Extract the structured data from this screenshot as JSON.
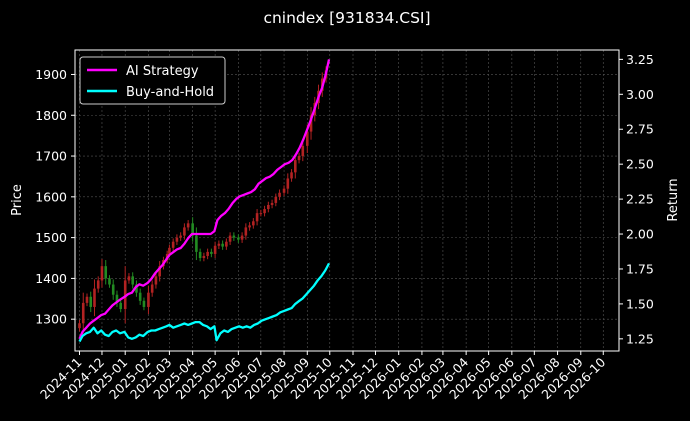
{
  "chart_data": {
    "type": "line",
    "title": "cnindex [931834.CSI]",
    "ylabel": "Price",
    "y2label": "Return",
    "ylim": [
      1222,
      1960
    ],
    "y2lim": [
      1.163,
      3.317
    ],
    "yticks": [
      1300,
      1400,
      1500,
      1600,
      1700,
      1800,
      1900
    ],
    "y2ticks": [
      1.25,
      1.5,
      1.75,
      2.0,
      2.25,
      2.5,
      2.75,
      3.0,
      3.25
    ],
    "y2tick_labels": [
      "1.25",
      "1.50",
      "1.75",
      "2.00",
      "2.25",
      "2.50",
      "2.75",
      "3.00",
      "3.25"
    ],
    "xlim": [
      "2024-10-26",
      "2026-10-22"
    ],
    "xticks": [
      "2024-11",
      "2024-12",
      "2025-01",
      "2025-02",
      "2025-03",
      "2025-04",
      "2025-05",
      "2025-06",
      "2025-07",
      "2025-08",
      "2025-09",
      "2025-10",
      "2025-11",
      "2025-12",
      "2026-01",
      "2026-02",
      "2026-03",
      "2026-04",
      "2026-05",
      "2026-06",
      "2026-07",
      "2026-08",
      "2026-09",
      "2026-10"
    ],
    "grid": true,
    "legend_position": "upper-left",
    "background": "#000000",
    "candle_up_color": "#b22222",
    "candle_down_color": "#228b22",
    "candlestick_close": [
      [
        "2024-11-01",
        1290
      ],
      [
        "2024-11-06",
        1340
      ],
      [
        "2024-11-11",
        1355
      ],
      [
        "2024-11-16",
        1330
      ],
      [
        "2024-11-21",
        1375
      ],
      [
        "2024-11-26",
        1395
      ],
      [
        "2024-12-01",
        1430
      ],
      [
        "2024-12-06",
        1400
      ],
      [
        "2024-12-11",
        1385
      ],
      [
        "2024-12-16",
        1360
      ],
      [
        "2024-12-21",
        1340
      ],
      [
        "2024-12-26",
        1325
      ],
      [
        "2025-01-01",
        1395
      ],
      [
        "2025-01-06",
        1405
      ],
      [
        "2025-01-11",
        1385
      ],
      [
        "2025-01-16",
        1365
      ],
      [
        "2025-01-21",
        1345
      ],
      [
        "2025-01-26",
        1330
      ],
      [
        "2025-02-01",
        1365
      ],
      [
        "2025-02-06",
        1385
      ],
      [
        "2025-02-11",
        1405
      ],
      [
        "2025-02-16",
        1430
      ],
      [
        "2025-02-21",
        1445
      ],
      [
        "2025-02-26",
        1460
      ],
      [
        "2025-03-01",
        1475
      ],
      [
        "2025-03-06",
        1490
      ],
      [
        "2025-03-11",
        1500
      ],
      [
        "2025-03-16",
        1505
      ],
      [
        "2025-03-21",
        1525
      ],
      [
        "2025-03-26",
        1535
      ],
      [
        "2025-04-01",
        1505
      ],
      [
        "2025-04-06",
        1465
      ],
      [
        "2025-04-11",
        1450
      ],
      [
        "2025-04-16",
        1455
      ],
      [
        "2025-04-21",
        1465
      ],
      [
        "2025-04-26",
        1460
      ],
      [
        "2025-05-01",
        1480
      ],
      [
        "2025-05-06",
        1485
      ],
      [
        "2025-05-11",
        1478
      ],
      [
        "2025-05-16",
        1490
      ],
      [
        "2025-05-21",
        1505
      ],
      [
        "2025-05-26",
        1500
      ],
      [
        "2025-06-01",
        1495
      ],
      [
        "2025-06-06",
        1505
      ],
      [
        "2025-06-11",
        1525
      ],
      [
        "2025-06-16",
        1530
      ],
      [
        "2025-06-21",
        1540
      ],
      [
        "2025-06-26",
        1560
      ],
      [
        "2025-07-01",
        1560
      ],
      [
        "2025-07-06",
        1570
      ],
      [
        "2025-07-11",
        1580
      ],
      [
        "2025-07-16",
        1585
      ],
      [
        "2025-07-21",
        1600
      ],
      [
        "2025-07-26",
        1610
      ],
      [
        "2025-08-01",
        1620
      ],
      [
        "2025-08-06",
        1645
      ],
      [
        "2025-08-11",
        1660
      ],
      [
        "2025-08-16",
        1690
      ],
      [
        "2025-08-21",
        1700
      ],
      [
        "2025-08-26",
        1725
      ],
      [
        "2025-09-01",
        1760
      ],
      [
        "2025-09-06",
        1800
      ],
      [
        "2025-09-11",
        1830
      ],
      [
        "2025-09-16",
        1860
      ],
      [
        "2025-09-21",
        1890
      ],
      [
        "2025-09-26",
        1910
      ]
    ],
    "series": [
      {
        "name": "AI Strategy",
        "axis": "return",
        "color": "#ff00ff",
        "points": [
          [
            "2024-11-01",
            1.25
          ],
          [
            "2024-11-05",
            1.3
          ],
          [
            "2024-11-10",
            1.33
          ],
          [
            "2024-11-15",
            1.36
          ],
          [
            "2024-11-20",
            1.38
          ],
          [
            "2024-11-25",
            1.4
          ],
          [
            "2024-11-30",
            1.42
          ],
          [
            "2024-12-05",
            1.43
          ],
          [
            "2024-12-10",
            1.46
          ],
          [
            "2024-12-15",
            1.49
          ],
          [
            "2024-12-20",
            1.51
          ],
          [
            "2024-12-25",
            1.53
          ],
          [
            "2024-12-31",
            1.55
          ],
          [
            "2025-01-05",
            1.57
          ],
          [
            "2025-01-10",
            1.58
          ],
          [
            "2025-01-15",
            1.62
          ],
          [
            "2025-01-20",
            1.64
          ],
          [
            "2025-01-25",
            1.63
          ],
          [
            "2025-01-31",
            1.65
          ],
          [
            "2025-02-05",
            1.68
          ],
          [
            "2025-02-10",
            1.72
          ],
          [
            "2025-02-15",
            1.75
          ],
          [
            "2025-02-20",
            1.78
          ],
          [
            "2025-02-25",
            1.82
          ],
          [
            "2025-03-01",
            1.85
          ],
          [
            "2025-03-06",
            1.87
          ],
          [
            "2025-03-11",
            1.89
          ],
          [
            "2025-03-16",
            1.9
          ],
          [
            "2025-03-21",
            1.93
          ],
          [
            "2025-03-26",
            1.97
          ],
          [
            "2025-03-31",
            2.0
          ],
          [
            "2025-04-05",
            2.0
          ],
          [
            "2025-04-10",
            2.0
          ],
          [
            "2025-04-15",
            2.0
          ],
          [
            "2025-04-20",
            2.0
          ],
          [
            "2025-04-25",
            2.0
          ],
          [
            "2025-04-30",
            2.02
          ],
          [
            "2025-05-04",
            2.1
          ],
          [
            "2025-05-09",
            2.13
          ],
          [
            "2025-05-14",
            2.15
          ],
          [
            "2025-05-19",
            2.18
          ],
          [
            "2025-05-24",
            2.22
          ],
          [
            "2025-05-29",
            2.25
          ],
          [
            "2025-06-03",
            2.27
          ],
          [
            "2025-06-08",
            2.28
          ],
          [
            "2025-06-13",
            2.29
          ],
          [
            "2025-06-18",
            2.3
          ],
          [
            "2025-06-23",
            2.32
          ],
          [
            "2025-06-28",
            2.36
          ],
          [
            "2025-07-03",
            2.38
          ],
          [
            "2025-07-08",
            2.4
          ],
          [
            "2025-07-13",
            2.41
          ],
          [
            "2025-07-18",
            2.43
          ],
          [
            "2025-07-23",
            2.46
          ],
          [
            "2025-07-28",
            2.48
          ],
          [
            "2025-08-02",
            2.5
          ],
          [
            "2025-08-07",
            2.51
          ],
          [
            "2025-08-12",
            2.53
          ],
          [
            "2025-08-17",
            2.57
          ],
          [
            "2025-08-22",
            2.62
          ],
          [
            "2025-08-27",
            2.68
          ],
          [
            "2025-09-01",
            2.75
          ],
          [
            "2025-09-06",
            2.82
          ],
          [
            "2025-09-11",
            2.9
          ],
          [
            "2025-09-16",
            2.98
          ],
          [
            "2025-09-21",
            3.05
          ],
          [
            "2025-09-26",
            3.15
          ],
          [
            "2025-09-30",
            3.25
          ]
        ]
      },
      {
        "name": "Buy-and-Hold",
        "axis": "return",
        "color": "#00ffff",
        "points": [
          [
            "2024-11-01",
            1.23
          ],
          [
            "2024-11-05",
            1.27
          ],
          [
            "2024-11-10",
            1.29
          ],
          [
            "2024-11-15",
            1.3
          ],
          [
            "2024-11-20",
            1.33
          ],
          [
            "2024-11-25",
            1.29
          ],
          [
            "2024-11-30",
            1.31
          ],
          [
            "2024-12-05",
            1.28
          ],
          [
            "2024-12-10",
            1.27
          ],
          [
            "2024-12-15",
            1.3
          ],
          [
            "2024-12-20",
            1.31
          ],
          [
            "2024-12-25",
            1.29
          ],
          [
            "2024-12-31",
            1.3
          ],
          [
            "2025-01-05",
            1.26
          ],
          [
            "2025-01-10",
            1.25
          ],
          [
            "2025-01-15",
            1.26
          ],
          [
            "2025-01-20",
            1.28
          ],
          [
            "2025-01-25",
            1.27
          ],
          [
            "2025-01-31",
            1.3
          ],
          [
            "2025-02-05",
            1.31
          ],
          [
            "2025-02-10",
            1.31
          ],
          [
            "2025-02-15",
            1.32
          ],
          [
            "2025-02-20",
            1.33
          ],
          [
            "2025-02-25",
            1.34
          ],
          [
            "2025-03-01",
            1.35
          ],
          [
            "2025-03-06",
            1.33
          ],
          [
            "2025-03-11",
            1.34
          ],
          [
            "2025-03-16",
            1.35
          ],
          [
            "2025-03-21",
            1.36
          ],
          [
            "2025-03-26",
            1.35
          ],
          [
            "2025-03-31",
            1.36
          ],
          [
            "2025-04-05",
            1.37
          ],
          [
            "2025-04-10",
            1.37
          ],
          [
            "2025-04-15",
            1.35
          ],
          [
            "2025-04-20",
            1.34
          ],
          [
            "2025-04-25",
            1.32
          ],
          [
            "2025-04-30",
            1.34
          ],
          [
            "2025-05-03",
            1.24
          ],
          [
            "2025-05-08",
            1.29
          ],
          [
            "2025-05-13",
            1.31
          ],
          [
            "2025-05-18",
            1.3
          ],
          [
            "2025-05-23",
            1.32
          ],
          [
            "2025-05-28",
            1.33
          ],
          [
            "2025-06-02",
            1.34
          ],
          [
            "2025-06-07",
            1.33
          ],
          [
            "2025-06-12",
            1.34
          ],
          [
            "2025-06-17",
            1.33
          ],
          [
            "2025-06-22",
            1.35
          ],
          [
            "2025-06-27",
            1.36
          ],
          [
            "2025-07-02",
            1.38
          ],
          [
            "2025-07-07",
            1.39
          ],
          [
            "2025-07-12",
            1.4
          ],
          [
            "2025-07-17",
            1.41
          ],
          [
            "2025-07-22",
            1.42
          ],
          [
            "2025-07-27",
            1.44
          ],
          [
            "2025-08-01",
            1.45
          ],
          [
            "2025-08-06",
            1.46
          ],
          [
            "2025-08-11",
            1.47
          ],
          [
            "2025-08-16",
            1.5
          ],
          [
            "2025-08-21",
            1.52
          ],
          [
            "2025-08-26",
            1.54
          ],
          [
            "2025-08-31",
            1.57
          ],
          [
            "2025-09-05",
            1.6
          ],
          [
            "2025-09-10",
            1.63
          ],
          [
            "2025-09-15",
            1.67
          ],
          [
            "2025-09-20",
            1.7
          ],
          [
            "2025-09-25",
            1.74
          ],
          [
            "2025-09-30",
            1.79
          ]
        ]
      }
    ]
  }
}
